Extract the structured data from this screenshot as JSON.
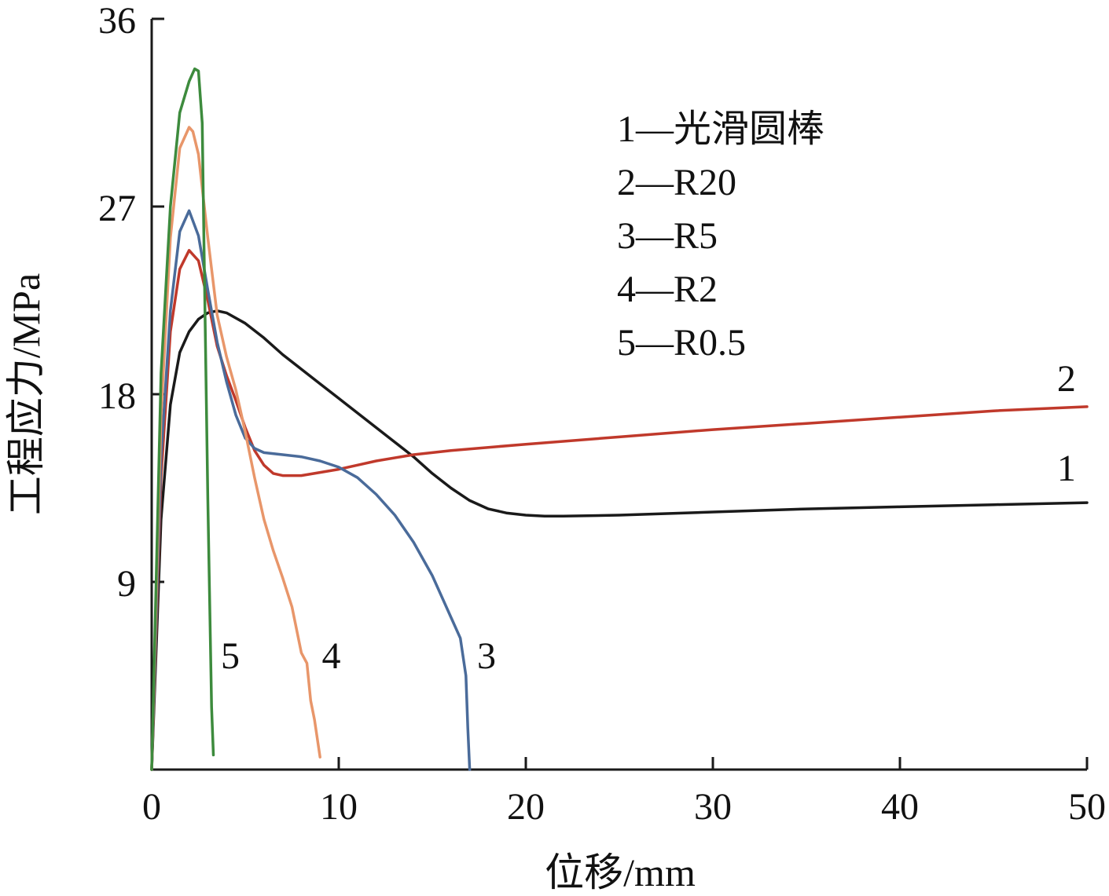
{
  "chart_data": {
    "type": "line",
    "xlabel": "位移/mm",
    "ylabel": "工程应力/MPa",
    "xlim": [
      0,
      50
    ],
    "ylim": [
      0,
      36
    ],
    "xticks": [
      0,
      10,
      20,
      30,
      40,
      50
    ],
    "yticks": [
      9,
      18,
      27,
      36
    ],
    "grid": false,
    "legend": {
      "placement": "top-right",
      "entries": [
        "1—光滑圆棒",
        "2—R20",
        "3—R5",
        "4—R2",
        "5—R0.5"
      ]
    },
    "series": [
      {
        "label": "1",
        "color": "#1a1a1a",
        "x": [
          0,
          0.5,
          1,
          1.5,
          2,
          2.5,
          3,
          3.5,
          4,
          5,
          6,
          7,
          8,
          9,
          10,
          11,
          12,
          13,
          14,
          15,
          16,
          17,
          18,
          19,
          20,
          21,
          22,
          25,
          30,
          35,
          40,
          45,
          50
        ],
        "y": [
          0,
          12,
          17.5,
          20,
          21,
          21.6,
          21.9,
          22,
          21.9,
          21.4,
          20.7,
          19.9,
          19.2,
          18.5,
          17.8,
          17.1,
          16.4,
          15.7,
          15,
          14.2,
          13.5,
          12.9,
          12.5,
          12.3,
          12.2,
          12.15,
          12.15,
          12.2,
          12.35,
          12.5,
          12.6,
          12.7,
          12.8
        ]
      },
      {
        "label": "2",
        "color": "#c0392b",
        "x": [
          0,
          0.5,
          1,
          1.5,
          2,
          2.5,
          3,
          3.5,
          4,
          4.5,
          5,
          5.5,
          6,
          6.5,
          7,
          8,
          9,
          10,
          11,
          12,
          14,
          16,
          20,
          25,
          30,
          35,
          40,
          45,
          50
        ],
        "y": [
          0,
          14,
          21,
          24,
          24.9,
          24.4,
          22.5,
          20.3,
          18.9,
          17.7,
          16.4,
          15.3,
          14.6,
          14.2,
          14.1,
          14.1,
          14.25,
          14.4,
          14.6,
          14.8,
          15.1,
          15.3,
          15.6,
          15.95,
          16.3,
          16.6,
          16.9,
          17.2,
          17.4
        ]
      },
      {
        "label": "3",
        "color": "#4a6b9a",
        "x": [
          0,
          0.5,
          1,
          1.5,
          2,
          2.5,
          3,
          3.5,
          4,
          4.5,
          5,
          5.5,
          6,
          7,
          8,
          9,
          10,
          11,
          12,
          13,
          14,
          15,
          16,
          16.5,
          16.8,
          16.9,
          17
        ],
        "y": [
          0,
          15,
          22,
          25.8,
          26.8,
          25.6,
          23,
          20.5,
          18.6,
          17,
          15.9,
          15.4,
          15.2,
          15.1,
          15,
          14.8,
          14.5,
          14,
          13.2,
          12.2,
          10.9,
          9.3,
          7.3,
          6.3,
          4.5,
          2,
          0
        ]
      },
      {
        "label": "4",
        "color": "#e8966a",
        "x": [
          0,
          0.5,
          1,
          1.5,
          2,
          2.2,
          2.5,
          3,
          3.5,
          4,
          4.5,
          5,
          5.5,
          6,
          6.5,
          7,
          7.5,
          8,
          8.3,
          8.5,
          8.7,
          9
        ],
        "y": [
          0,
          17,
          25.5,
          29.8,
          30.8,
          30.6,
          29.5,
          25.5,
          21.8,
          19.8,
          18.2,
          16.2,
          14,
          12,
          10.5,
          9.2,
          7.8,
          5.6,
          5.1,
          3.3,
          2.4,
          0.6
        ]
      },
      {
        "label": "5",
        "color": "#3d8b3d",
        "x": [
          0,
          0.5,
          1,
          1.5,
          2,
          2.3,
          2.5,
          2.7,
          2.8,
          3,
          3.2,
          3.3
        ],
        "y": [
          0,
          19,
          27,
          31.5,
          33,
          33.6,
          33.5,
          31,
          25,
          13,
          3,
          0.7
        ]
      }
    ],
    "curve_labels": [
      {
        "text": "1",
        "x": 48.9,
        "y": 14.5
      },
      {
        "text": "2",
        "x": 48.9,
        "y": 18.8
      },
      {
        "text": "3",
        "x": 17.9,
        "y": 5.5
      },
      {
        "text": "4",
        "x": 9.6,
        "y": 5.5
      },
      {
        "text": "5",
        "x": 4.2,
        "y": 5.5
      }
    ]
  }
}
